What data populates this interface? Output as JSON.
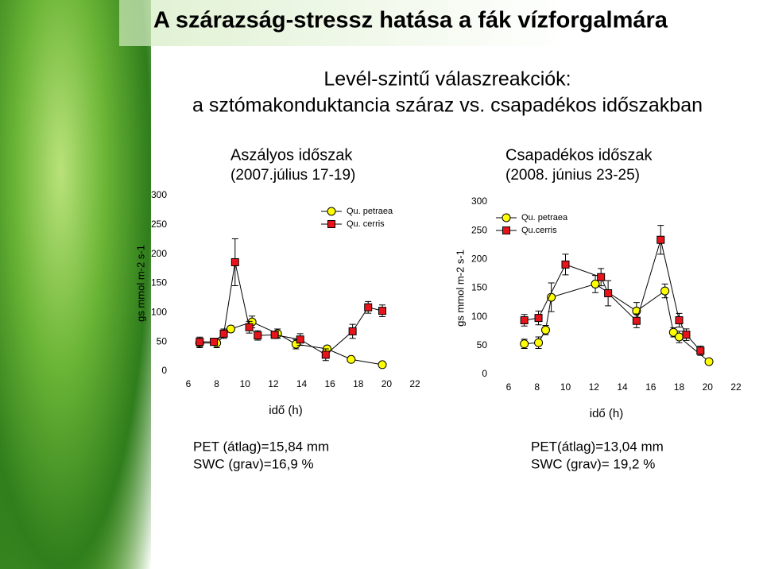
{
  "slide": {
    "title": "A szárazság-stressz hatása a fák vízforgalmára",
    "subtitle": [
      "Levél-szintű válaszreakciók:",
      "a sztómakonduktancia száraz vs. csapadékos időszakban"
    ]
  },
  "chart_data": [
    {
      "type": "line",
      "title": [
        "Aszályos időszak",
        "(2007.július 17-19)"
      ],
      "x_label": "idő (h)",
      "y_label": "gs mmol m-2 s-1",
      "xlim": [
        6,
        22
      ],
      "xticks": [
        6,
        8,
        10,
        12,
        14,
        16,
        18,
        20,
        22
      ],
      "ylim": [
        0,
        300
      ],
      "yticks": [
        0,
        50,
        100,
        150,
        200,
        250,
        300
      ],
      "legend": "upper right",
      "series": [
        {
          "name": "Qu. petraea",
          "color": "#ffff00",
          "marker": "circle",
          "x": [
            6.8,
            8,
            9,
            10.5,
            12.3,
            13.6,
            15.8,
            17.5,
            19.7
          ],
          "values": [
            48,
            48,
            72,
            84,
            64,
            46,
            38,
            20,
            11
          ],
          "errors": [
            8,
            8,
            5,
            10,
            8,
            8,
            5,
            4,
            4
          ]
        },
        {
          "name": "Qu. cerris",
          "color": "#e8141b",
          "marker": "square",
          "x": [
            6.8,
            7.8,
            8.5,
            9.3,
            10.3,
            10.9,
            12.1,
            13.9,
            15.7,
            17.6,
            18.7,
            19.7
          ],
          "values": [
            50,
            50,
            64,
            186,
            75,
            61,
            62,
            54,
            28,
            68,
            109,
            103
          ],
          "errors": [
            8,
            6,
            8,
            40,
            10,
            8,
            6,
            10,
            10,
            12,
            10,
            10
          ]
        }
      ],
      "notes": [
        "PET (átlag)=15,84 mm",
        "SWC (grav)=16,9 %"
      ]
    },
    {
      "type": "line",
      "title": [
        "Csapadékos időszak",
        "(2008. június 23-25)"
      ],
      "x_label": "idő (h)",
      "y_label": "gs mmol m-2 s-1",
      "xlim": [
        6,
        22
      ],
      "xticks": [
        6,
        8,
        10,
        12,
        14,
        16,
        18,
        20,
        22
      ],
      "ylim": [
        0,
        300
      ],
      "yticks": [
        0,
        50,
        100,
        150,
        200,
        250,
        300
      ],
      "legend": "upper left",
      "series": [
        {
          "name": "Qu. petraea",
          "color": "#ffff00",
          "marker": "circle",
          "x": [
            7.1,
            8.1,
            8.6,
            9,
            12.1,
            15,
            17,
            17.6,
            18,
            20.1
          ],
          "values": [
            53,
            55,
            77,
            134,
            157,
            110,
            145,
            73,
            65,
            22
          ],
          "errors": [
            8,
            10,
            8,
            25,
            15,
            15,
            12,
            8,
            10,
            4
          ]
        },
        {
          "name": "Qu.cerris",
          "color": "#e8141b",
          "marker": "square",
          "x": [
            7.1,
            8.1,
            10,
            12.5,
            13,
            15,
            16.7,
            18,
            18.5,
            19.5
          ],
          "values": [
            94,
            98,
            191,
            169,
            141,
            93,
            234,
            94,
            69,
            41
          ],
          "errors": [
            10,
            12,
            18,
            15,
            22,
            12,
            25,
            12,
            10,
            8
          ]
        }
      ],
      "notes": [
        "PET(átlag)=13,04 mm",
        "SWC (grav)= 19,2 %"
      ]
    }
  ]
}
